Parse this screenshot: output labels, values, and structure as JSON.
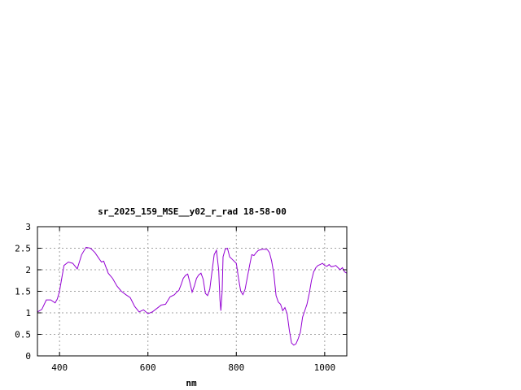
{
  "chart_data": {
    "type": "line",
    "title": "sr_2025_159_MSE__y02_r_rad 18-58-00",
    "xlabel": "nm",
    "ylabel": "",
    "xlim": [
      350,
      1050
    ],
    "ylim": [
      0,
      3
    ],
    "x_ticks": [
      400,
      600,
      800,
      1000
    ],
    "x_tick_labels": [
      "400",
      "600",
      "800",
      "1000"
    ],
    "y_ticks": [
      0,
      0.5,
      1,
      1.5,
      2,
      2.5,
      3
    ],
    "y_tick_labels": [
      "0",
      "0.5",
      "1",
      "1.5",
      "2",
      "2.5",
      "3"
    ],
    "grid": true,
    "legend": "none",
    "line_color": "#9400d3",
    "series": [
      {
        "x": [
          350,
          360,
          370,
          380,
          390,
          395,
          400,
          410,
          420,
          430,
          440,
          450,
          460,
          470,
          480,
          490,
          495,
          500,
          510,
          520,
          530,
          540,
          550,
          560,
          570,
          580,
          590,
          600,
          610,
          620,
          630,
          640,
          650,
          660,
          665,
          670,
          675,
          680,
          685,
          690,
          695,
          700,
          705,
          710,
          715,
          720,
          725,
          730,
          735,
          740,
          745,
          750,
          755,
          760,
          763,
          765,
          768,
          770,
          775,
          780,
          785,
          790,
          800,
          805,
          810,
          815,
          820,
          830,
          835,
          840,
          845,
          850,
          860,
          870,
          875,
          880,
          885,
          890,
          895,
          900,
          905,
          910,
          915,
          920,
          925,
          930,
          935,
          940,
          945,
          950,
          955,
          960,
          965,
          970,
          975,
          980,
          985,
          990,
          995,
          1000,
          1005,
          1010,
          1015,
          1020,
          1025,
          1030,
          1035,
          1040,
          1045,
          1050
        ],
        "y": [
          1.02,
          1.08,
          1.3,
          1.3,
          1.23,
          1.32,
          1.5,
          2.1,
          2.18,
          2.15,
          2.02,
          2.35,
          2.52,
          2.5,
          2.4,
          2.25,
          2.18,
          2.2,
          1.92,
          1.8,
          1.62,
          1.5,
          1.42,
          1.35,
          1.15,
          1.02,
          1.07,
          0.98,
          1.02,
          1.1,
          1.18,
          1.2,
          1.37,
          1.42,
          1.48,
          1.52,
          1.65,
          1.8,
          1.87,
          1.9,
          1.7,
          1.48,
          1.62,
          1.8,
          1.88,
          1.92,
          1.78,
          1.45,
          1.4,
          1.55,
          1.95,
          2.35,
          2.45,
          2.0,
          1.3,
          1.05,
          1.5,
          2.3,
          2.48,
          2.5,
          2.3,
          2.25,
          2.15,
          1.8,
          1.5,
          1.42,
          1.55,
          2.1,
          2.35,
          2.33,
          2.4,
          2.45,
          2.48,
          2.47,
          2.4,
          2.2,
          1.9,
          1.4,
          1.25,
          1.2,
          1.05,
          1.12,
          0.98,
          0.6,
          0.3,
          0.25,
          0.28,
          0.4,
          0.55,
          0.9,
          1.05,
          1.2,
          1.45,
          1.75,
          1.95,
          2.05,
          2.1,
          2.12,
          2.15,
          2.1,
          2.08,
          2.12,
          2.07,
          2.08,
          2.1,
          2.05,
          2.0,
          2.05,
          1.95,
          1.92
        ]
      }
    ]
  }
}
